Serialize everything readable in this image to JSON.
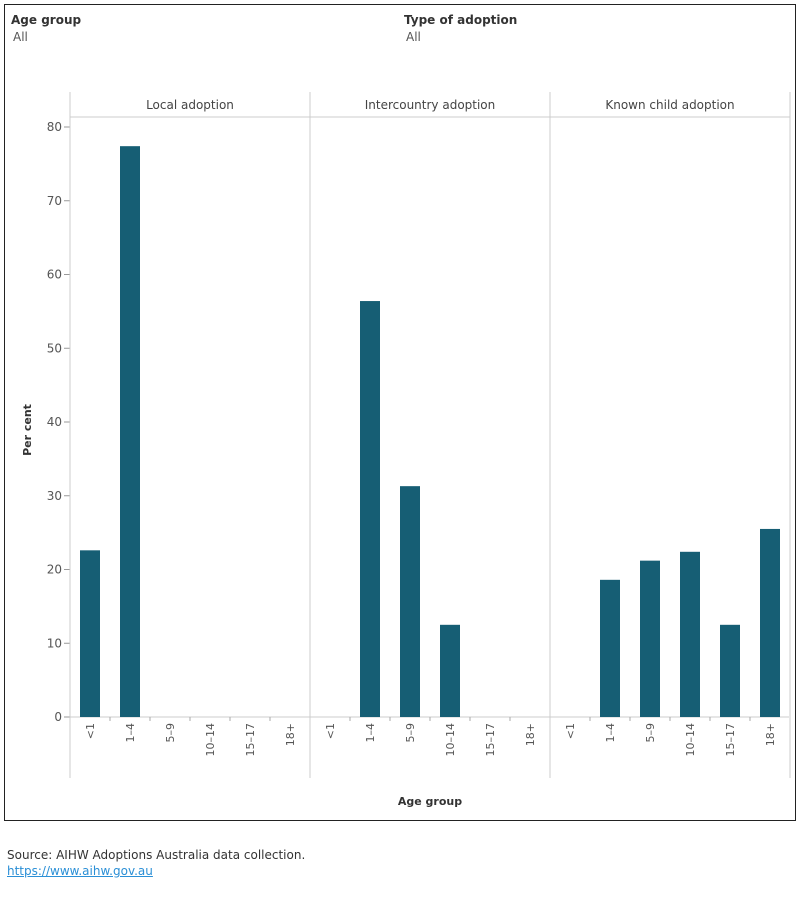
{
  "filters": [
    {
      "label": "Age group",
      "value": "All"
    },
    {
      "label": "Type of adoption",
      "value": "All"
    }
  ],
  "chart_data": {
    "type": "bar",
    "ylabel": "Per cent",
    "xlabel": "Age group",
    "ylim": [
      0,
      80
    ],
    "yticks": [
      0,
      10,
      20,
      30,
      40,
      50,
      60,
      70,
      80
    ],
    "categories": [
      "<1",
      "1–4",
      "5–9",
      "10–14",
      "15–17",
      "18+"
    ],
    "bar_color": "#165e74",
    "panels": [
      {
        "name": "Local adoption",
        "values": [
          22.6,
          77.4,
          0,
          0,
          0,
          0
        ]
      },
      {
        "name": "Intercountry adoption",
        "values": [
          0,
          56.4,
          31.3,
          12.5,
          0,
          0
        ]
      },
      {
        "name": "Known child adoption",
        "values": [
          0,
          18.6,
          21.2,
          22.4,
          12.5,
          25.5
        ]
      }
    ]
  },
  "source": {
    "text": "Source: AIHW Adoptions Australia data collection.",
    "link": "https://www.aihw.gov.au"
  }
}
